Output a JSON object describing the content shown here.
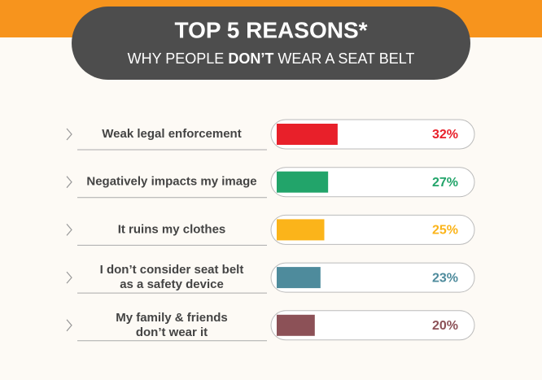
{
  "chart_data": {
    "type": "bar",
    "title": "TOP 5 REASONS*",
    "subtitle": {
      "before": "WHY PEOPLE",
      "emphasis": "DON’T",
      "after": "WEAR A SEAT BELT"
    },
    "categories": [
      [
        "Weak legal enforcement"
      ],
      [
        "Negatively impacts my image"
      ],
      [
        "It ruins my clothes"
      ],
      [
        "I don’t consider seat belt",
        "as a safety device"
      ],
      [
        "My family & friends",
        "don’t wear it"
      ]
    ],
    "values": [
      32,
      27,
      25,
      23,
      20
    ],
    "value_labels": [
      "32%",
      "27%",
      "25%",
      "23%",
      "20%"
    ],
    "colors": [
      "#e8202a",
      "#22a46a",
      "#fbb41a",
      "#4e8b9c",
      "#8c5157"
    ]
  }
}
